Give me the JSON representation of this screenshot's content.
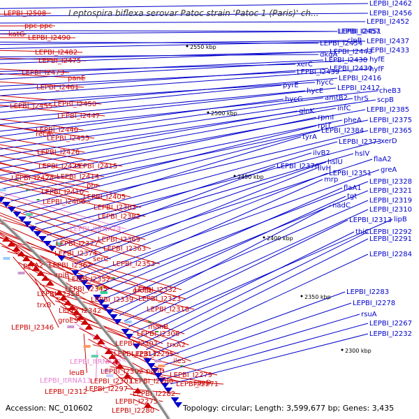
{
  "title": "Leptospira biflexa serovar Patoc strain 'Patoc 1 (Paris)' ch...",
  "footer": {
    "accession": "Accession: NC_010602",
    "summary": "Topology: circular; Length: 3,599,677 bp; Genes: 3,435"
  },
  "colors": {
    "reverse_strand": "#cc0000",
    "forward_strand": "#0000cc",
    "trna_label": "#e77fd0",
    "backbone": "#888888"
  },
  "scale_ticks": [
    "2550 kbp",
    "2500 kbp",
    "2450 kbp",
    "2400 kbp",
    "2350 kbp",
    "2300 kbp"
  ],
  "left_labels": [
    {
      "text": "LEPBI_I2508",
      "type": "gene"
    },
    {
      "text": "ppc-ppc",
      "type": "gene"
    },
    {
      "text": "katG",
      "type": "gene"
    },
    {
      "text": "LEPBI_I2490",
      "type": "gene"
    },
    {
      "text": "LEPBI_I2482",
      "type": "gene"
    },
    {
      "text": "LEPBI_I2475",
      "type": "gene"
    },
    {
      "text": "LEPBI_I2473",
      "type": "gene"
    },
    {
      "text": "panE",
      "type": "gene"
    },
    {
      "text": "LEPBI_I2461",
      "type": "gene"
    },
    {
      "text": "LEPBI_I2455",
      "type": "gene"
    },
    {
      "text": "LEPBI_I2450",
      "type": "gene"
    },
    {
      "text": "LEPBI_I2447",
      "type": "gene"
    },
    {
      "text": "recA",
      "type": "gene"
    },
    {
      "text": "LEPBI_I2440",
      "type": "gene"
    },
    {
      "text": "LEPBI_I2435",
      "type": "gene"
    },
    {
      "text": "LEPBI_I2426",
      "type": "gene"
    },
    {
      "text": "LEPBI_I2425",
      "type": "gene"
    },
    {
      "text": "LEPBI_I2415",
      "type": "gene"
    },
    {
      "text": "LEPBI_I2424",
      "type": "gene"
    },
    {
      "text": "LEPBI_I2414",
      "type": "gene"
    },
    {
      "text": "phr",
      "type": "gene"
    },
    {
      "text": "LEPBI_I2410",
      "type": "gene"
    },
    {
      "text": "LEPBI_I2405",
      "type": "gene"
    },
    {
      "text": "LEPBI_I2406",
      "type": "gene"
    },
    {
      "text": "LEPBI_I2383",
      "type": "gene"
    },
    {
      "text": "LEPBI_I2382",
      "type": "gene"
    },
    {
      "text": "LEPBI_ItRNA14",
      "type": "trna"
    },
    {
      "text": "LEPBI_I2369",
      "type": "gene"
    },
    {
      "text": "LEPBI_I2377",
      "type": "gene"
    },
    {
      "text": "LEPBI_I2363",
      "type": "gene"
    },
    {
      "text": "LEPBI_I2374",
      "type": "gene"
    },
    {
      "text": "serC",
      "type": "gene"
    },
    {
      "text": "pcrA2",
      "type": "gene"
    },
    {
      "text": "LEPBI_I2367",
      "type": "gene"
    },
    {
      "text": "LEPBI_I2353",
      "type": "gene"
    },
    {
      "text": "rpiB",
      "type": "gene"
    },
    {
      "text": "LEPBI_I2352",
      "type": "gene"
    },
    {
      "text": "groEL",
      "type": "gene"
    },
    {
      "text": "LEPBI_I2345",
      "type": "gene"
    },
    {
      "text": "LEPBI_I2332",
      "type": "gene"
    },
    {
      "text": "LEPBI_I2358",
      "type": "gene"
    },
    {
      "text": "LEPBI_I2339",
      "type": "gene"
    },
    {
      "text": "LEPBI_I2323",
      "type": "gene"
    },
    {
      "text": "trxB",
      "type": "gene"
    },
    {
      "text": "LEPBI_I2342",
      "type": "gene"
    },
    {
      "text": "LEPBI_I2318",
      "type": "gene"
    },
    {
      "text": "groES",
      "type": "gene"
    },
    {
      "text": "LEPBI_I2346",
      "type": "gene"
    },
    {
      "text": "manB",
      "type": "gene"
    },
    {
      "text": "LEPBI_I2306",
      "type": "gene"
    },
    {
      "text": "LEPBI_I2307",
      "type": "gene"
    },
    {
      "text": "trxA2",
      "type": "gene"
    },
    {
      "text": "LEPBI_I2311",
      "type": "gene"
    },
    {
      "text": "LEPBI_I2295",
      "type": "gene"
    },
    {
      "text": "ileS",
      "type": "gene"
    },
    {
      "text": "LEPBI_ItRNA12",
      "type": "trna"
    },
    {
      "text": "panD",
      "type": "gene"
    },
    {
      "text": "leuB",
      "type": "gene"
    },
    {
      "text": "LEPBI_I2302",
      "type": "gene"
    },
    {
      "text": "LEPBI_I2279",
      "type": "gene"
    },
    {
      "text": "LEPBI_ItRNA13",
      "type": "trna"
    },
    {
      "text": "LEPBI_I2301",
      "type": "gene"
    },
    {
      "text": "LEPBI_I2288",
      "type": "gene"
    },
    {
      "text": "speD",
      "type": "gene"
    },
    {
      "text": "LEPBI_I2297",
      "type": "gene"
    },
    {
      "text": "LEPBI_I2271",
      "type": "gene"
    },
    {
      "text": "LEPBI_I2312",
      "type": "gene"
    },
    {
      "text": "LEPBI_I2282",
      "type": "gene"
    },
    {
      "text": "LEPBI_I2275",
      "type": "gene"
    },
    {
      "text": "LEPBI_I2280",
      "type": "gene"
    }
  ],
  "right_labels": [
    {
      "text": "LEPBI_I2462"
    },
    {
      "text": "LEPBI_I2456"
    },
    {
      "text": "LEPBI_I2452"
    },
    {
      "text": "LEPBI_I2457"
    },
    {
      "text": "LEPBI_I2451"
    },
    {
      "text": "LEPBI_I2454"
    },
    {
      "text": "clpB"
    },
    {
      "text": "LEPBI_I2437"
    },
    {
      "text": "dkgA"
    },
    {
      "text": "LEPBI_I2443"
    },
    {
      "text": "LEPBI_I2433"
    },
    {
      "text": "xerC"
    },
    {
      "text": "LEPBI_I2438"
    },
    {
      "text": "hyfE"
    },
    {
      "text": "LEPBI_I2439"
    },
    {
      "text": "LEPBI_I2430"
    },
    {
      "text": "hyfF"
    },
    {
      "text": "hycC"
    },
    {
      "text": "LEPBI_I2416"
    },
    {
      "text": "pyrE"
    },
    {
      "text": "hycE"
    },
    {
      "text": "LEPBI_I2412"
    },
    {
      "text": "cheB3"
    },
    {
      "text": "hycG"
    },
    {
      "text": "amtB2"
    },
    {
      "text": "thrS"
    },
    {
      "text": "scpB"
    },
    {
      "text": "glnK"
    },
    {
      "text": "infC"
    },
    {
      "text": "LEPBI_I2385"
    },
    {
      "text": "rpmI"
    },
    {
      "text": "pheA"
    },
    {
      "text": "LEPBI_I2375"
    },
    {
      "text": "rplT"
    },
    {
      "text": "LEPBI_I2384"
    },
    {
      "text": "LEPBI_I2365"
    },
    {
      "text": "tyrA"
    },
    {
      "text": "LEPBI_I2373"
    },
    {
      "text": "xerD"
    },
    {
      "text": "ilvB2"
    },
    {
      "text": "hslV"
    },
    {
      "text": "LEPBI_I2376"
    },
    {
      "text": "hslU"
    },
    {
      "text": "flaA2"
    },
    {
      "text": "ilvH"
    },
    {
      "text": "LEPBI_I2351"
    },
    {
      "text": "greA"
    },
    {
      "text": "mrp"
    },
    {
      "text": "LEPBI_I2328"
    },
    {
      "text": "flaA1"
    },
    {
      "text": "LEPBI_I2321"
    },
    {
      "text": "tgt"
    },
    {
      "text": "LEPBI_I2319"
    },
    {
      "text": "nadC"
    },
    {
      "text": "LEPBI_I2310"
    },
    {
      "text": "LEPBI_I2313"
    },
    {
      "text": "lipB"
    },
    {
      "text": "thiC"
    },
    {
      "text": "LEPBI_I2292"
    },
    {
      "text": "LEPBI_I2291"
    },
    {
      "text": "LEPBI_I2284"
    },
    {
      "text": "LEPBI_I2283"
    },
    {
      "text": "LEPBI_I2278"
    },
    {
      "text": "rsuA"
    },
    {
      "text": "LEPBI_I2267"
    },
    {
      "text": "LEPBI_I2232"
    }
  ]
}
